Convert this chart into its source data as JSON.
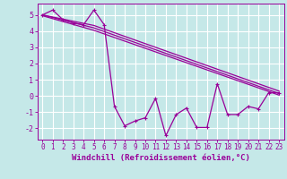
{
  "xlabel": "Windchill (Refroidissement éolien,°C)",
  "bg_color": "#c5e8e8",
  "grid_color": "#b0d8d8",
  "line_color": "#990099",
  "xlim": [
    -0.5,
    23.5
  ],
  "ylim": [
    -2.7,
    5.7
  ],
  "yticks": [
    -2,
    -1,
    0,
    1,
    2,
    3,
    4,
    5
  ],
  "xticks": [
    0,
    1,
    2,
    3,
    4,
    5,
    6,
    7,
    8,
    9,
    10,
    11,
    12,
    13,
    14,
    15,
    16,
    17,
    18,
    19,
    20,
    21,
    22,
    23
  ],
  "main_x": [
    0,
    1,
    2,
    3,
    4,
    5,
    6,
    7,
    8,
    9,
    10,
    11,
    12,
    13,
    14,
    15,
    16,
    17,
    18,
    19,
    20,
    21,
    22,
    23
  ],
  "main_y": [
    5.0,
    5.3,
    4.7,
    4.5,
    4.4,
    5.3,
    4.4,
    -0.65,
    -1.85,
    -1.55,
    -1.35,
    -0.15,
    -2.45,
    -1.15,
    -0.75,
    -1.95,
    -1.95,
    0.75,
    -1.15,
    -1.15,
    -0.65,
    -0.8,
    0.2,
    0.2
  ],
  "line2_x": [
    0,
    5,
    23
  ],
  "line2_y": [
    5.0,
    4.35,
    0.3
  ],
  "line3_x": [
    0,
    5,
    23
  ],
  "line3_y": [
    5.0,
    4.2,
    0.15
  ],
  "line4_x": [
    0,
    5,
    23
  ],
  "line4_y": [
    4.95,
    4.05,
    0.05
  ],
  "xlabel_fontsize": 6.5,
  "tick_fontsize": 5.5
}
